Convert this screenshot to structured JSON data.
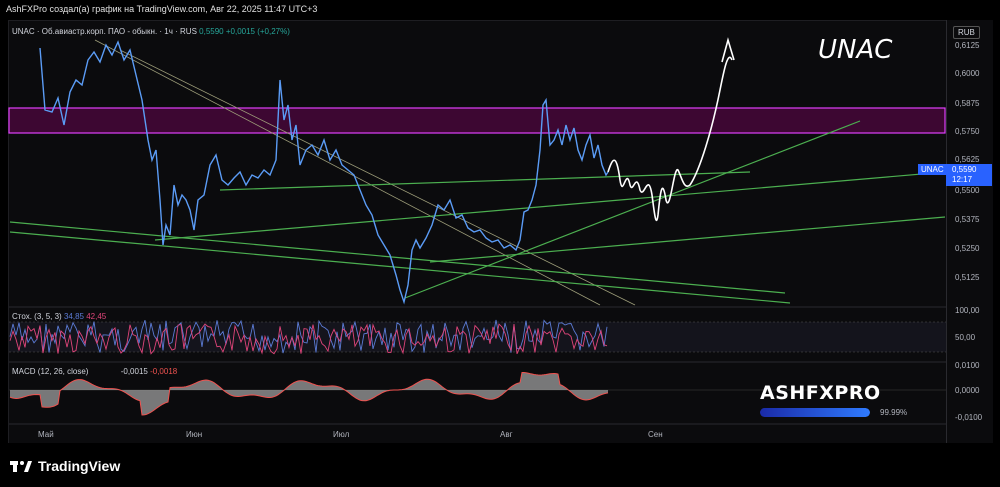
{
  "topbar": {
    "caption": "AshFXPro создал(а) график на TradingView.com, Авг 22, 2025 11:47 UTC+3"
  },
  "legend": {
    "symbol": "UNAC · Об.авиастр.корп. ПАО - обыкн. · 1ч · RUS",
    "price": "0,5590",
    "change": "+0,0015 (+0,27%)"
  },
  "annotation": {
    "title": "UNAC"
  },
  "price_scale": {
    "currency": "RUB",
    "ticks": [
      "0,6125",
      "0,6000",
      "0,5875",
      "0,5750",
      "0,5625",
      "0,5500",
      "0,5375",
      "0,5250",
      "0,5125"
    ],
    "last_price_ticker": "UNAC",
    "last_price": "0,5590",
    "countdown": "12:17"
  },
  "stoch": {
    "label": "Стох. (3, 5, 3)",
    "k": "34,85",
    "d": "42,45",
    "ticks": [
      "100,00",
      "50,00"
    ]
  },
  "macd": {
    "label": "MACD (12, 26, close)",
    "macd": "-0,0015",
    "signal": "-0,0018",
    "ticks": [
      "0,0100",
      "0,0000",
      "-0,0100"
    ]
  },
  "time_axis": {
    "ticks": [
      "Май",
      "Июн",
      "Июл",
      "Авг",
      "Сен"
    ]
  },
  "watermark": {
    "brand": "ASHFXPRO",
    "progress_text": "99.99%",
    "progress_fraction": 0.9999
  },
  "footer": {
    "logo_text": "TradingView"
  },
  "colors": {
    "price_line": "#5b9cf6",
    "zone_fill": "#4a0a3a",
    "zone_border": "#e040fb",
    "trendline": "#4caf50",
    "diagonal": "#9e9e7a",
    "projection": "#ffffff",
    "stoch_k": "#5b7bd5",
    "stoch_d": "#e0457a",
    "macd_line": "#ef5350",
    "accent": "#2962ff"
  }
}
